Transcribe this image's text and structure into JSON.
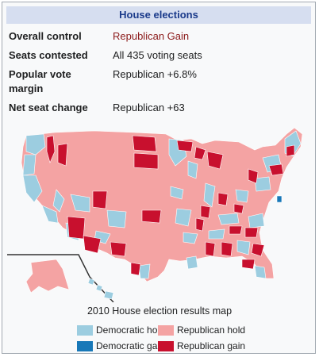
{
  "title": "House elections",
  "rows": [
    {
      "label": "Overall control",
      "value": "Republican Gain"
    },
    {
      "label": "Seats contested",
      "value": "All 435 voting seats"
    },
    {
      "label": "Popular vote margin",
      "value": "Republican +6.8%"
    },
    {
      "label": "Net seat change",
      "value": "Republican +63"
    }
  ],
  "map": {
    "caption": "2010 House election results map",
    "colors": {
      "dem_hold": "#9ccde0",
      "rep_hold": "#f4a3a3",
      "dem_gain": "#1878b8",
      "rep_gain": "#c8102e",
      "background": "#ffffff",
      "inset_line": "#333333"
    },
    "legend": [
      {
        "label": "Democratic hold",
        "color": "#9ccde0"
      },
      {
        "label": "Republican hold",
        "color": "#f4a3a3"
      },
      {
        "label": "Democratic gain",
        "color": "#1878b8"
      },
      {
        "label": "Republican gain",
        "color": "#c8102e"
      }
    ]
  }
}
